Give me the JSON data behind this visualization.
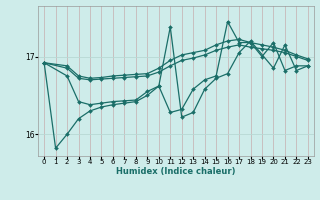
{
  "xlabel": "Humidex (Indice chaleur)",
  "bg_color": "#ceecea",
  "grid_color_v": "#c8b8b8",
  "grid_color_h": "#b8d8d4",
  "line_color": "#1a6e68",
  "xlim": [
    -0.5,
    23.5
  ],
  "ylim": [
    15.72,
    17.65
  ],
  "yticks": [
    16,
    17
  ],
  "xticks": [
    0,
    1,
    2,
    3,
    4,
    5,
    6,
    7,
    8,
    9,
    10,
    11,
    12,
    13,
    14,
    15,
    16,
    17,
    18,
    19,
    20,
    21,
    22,
    23
  ],
  "series": [
    {
      "x": [
        0,
        2,
        3,
        4,
        5,
        6,
        7,
        8,
        9,
        10,
        11,
        12,
        13,
        14,
        15,
        16,
        17,
        18,
        19,
        20,
        21,
        22,
        23
      ],
      "y": [
        16.92,
        16.88,
        16.75,
        16.72,
        16.73,
        16.75,
        16.76,
        16.77,
        16.78,
        16.85,
        16.95,
        17.02,
        17.05,
        17.08,
        17.15,
        17.2,
        17.22,
        17.18,
        17.15,
        17.12,
        17.08,
        17.02,
        16.97
      ]
    },
    {
      "x": [
        0,
        2,
        3,
        4,
        5,
        6,
        7,
        8,
        9,
        10,
        11,
        12,
        13,
        14,
        15,
        16,
        17,
        18,
        19,
        20,
        21,
        22,
        23
      ],
      "y": [
        16.92,
        16.85,
        16.72,
        16.7,
        16.71,
        16.72,
        16.73,
        16.74,
        16.75,
        16.8,
        16.88,
        16.95,
        16.98,
        17.02,
        17.08,
        17.12,
        17.15,
        17.12,
        17.1,
        17.08,
        17.05,
        17.0,
        16.95
      ]
    },
    {
      "x": [
        0,
        2,
        3,
        4,
        5,
        6,
        7,
        8,
        9,
        10,
        11,
        12,
        13,
        14,
        15,
        16,
        17,
        18,
        20,
        21,
        22,
        23
      ],
      "y": [
        16.92,
        16.75,
        16.42,
        16.38,
        16.4,
        16.42,
        16.43,
        16.44,
        16.55,
        16.62,
        17.38,
        16.22,
        16.28,
        16.58,
        16.72,
        16.78,
        17.05,
        17.2,
        16.85,
        17.15,
        16.82,
        16.88
      ]
    },
    {
      "x": [
        0,
        1,
        2,
        3,
        4,
        5,
        6,
        7,
        8,
        9,
        10,
        11,
        12,
        13,
        14,
        15,
        16,
        17,
        18,
        19,
        20,
        21,
        22,
        23
      ],
      "y": [
        16.92,
        15.82,
        16.0,
        16.2,
        16.3,
        16.35,
        16.38,
        16.4,
        16.42,
        16.5,
        16.62,
        16.28,
        16.32,
        16.58,
        16.7,
        16.75,
        17.45,
        17.18,
        17.18,
        17.0,
        17.18,
        16.82,
        16.88,
        16.88
      ]
    }
  ]
}
